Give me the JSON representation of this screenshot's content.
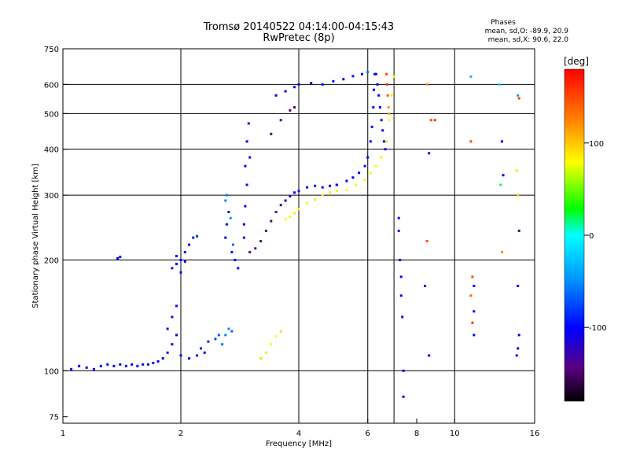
{
  "chart_data": {
    "type": "scatter",
    "title": "Tromsø 20140522 04:14:00-04:15:43",
    "subtitle": "RwPretec (8p)",
    "stats": {
      "heading": "Phases",
      "line1": "mean, sd,O: -89.9, 20.9",
      "line2": "mean, sd,X:  90.6, 22.0"
    },
    "xlabel": "Frequency [MHz]",
    "ylabel": "Stationary phase Virtual Height [km]",
    "x_scale": "log",
    "y_scale": "log",
    "xlim": [
      1,
      16
    ],
    "ylim": [
      72,
      750
    ],
    "x_ticks": [
      1,
      2,
      4,
      6,
      8,
      10,
      16
    ],
    "x_gridlines": [
      2,
      4,
      6,
      7,
      10
    ],
    "y_ticks": [
      75,
      100,
      200,
      300,
      400,
      500,
      600,
      750
    ],
    "y_gridlines": [
      100,
      200,
      300,
      400,
      500,
      600
    ],
    "grid": true,
    "colorbar": {
      "label": "[deg]",
      "range": [
        -180,
        180
      ],
      "ticks": [
        100,
        0,
        -100
      ],
      "tick_labels": [
        "100",
        "0",
        "-100"
      ]
    },
    "series": [
      {
        "points": [
          [
            1.05,
            101,
            -95
          ],
          [
            1.1,
            103,
            -100
          ],
          [
            1.15,
            102,
            -105
          ],
          [
            1.2,
            101,
            -98
          ],
          [
            1.25,
            103,
            -102
          ],
          [
            1.3,
            104,
            -96
          ],
          [
            1.35,
            103,
            -108
          ],
          [
            1.4,
            104,
            -100
          ],
          [
            1.45,
            103,
            -95
          ],
          [
            1.5,
            104,
            -103
          ],
          [
            1.55,
            103,
            -99
          ],
          [
            1.6,
            104,
            -101
          ],
          [
            1.65,
            104,
            -105
          ],
          [
            1.7,
            105,
            -97
          ],
          [
            1.75,
            106,
            -100
          ],
          [
            1.8,
            108,
            -102
          ],
          [
            1.85,
            112,
            -96
          ],
          [
            1.9,
            118,
            -100
          ],
          [
            1.95,
            125,
            -105
          ],
          [
            1.85,
            130,
            -98
          ],
          [
            1.9,
            140,
            -102
          ],
          [
            1.95,
            150,
            -95
          ],
          [
            2.0,
            110,
            -100
          ],
          [
            2.1,
            108,
            -102
          ],
          [
            2.2,
            110,
            -95
          ],
          [
            2.3,
            112,
            -105
          ]
        ]
      },
      {
        "points": [
          [
            1.9,
            190,
            -98
          ],
          [
            1.95,
            195,
            -102
          ],
          [
            2.0,
            200,
            -96
          ],
          [
            2.05,
            210,
            -105
          ],
          [
            2.1,
            220,
            -100
          ],
          [
            2.0,
            185,
            -95
          ],
          [
            1.95,
            205,
            -99
          ],
          [
            2.05,
            198,
            -103
          ],
          [
            2.15,
            230,
            -90
          ],
          [
            2.2,
            232,
            -85
          ]
        ]
      },
      {
        "points": [
          [
            1.38,
            202,
            -100
          ],
          [
            1.4,
            204,
            -102
          ]
        ]
      },
      {
        "points": [
          [
            2.25,
            115,
            -90
          ],
          [
            2.35,
            120,
            -85
          ],
          [
            2.45,
            122,
            -75
          ],
          [
            2.5,
            125,
            -70
          ],
          [
            2.55,
            118,
            -60
          ],
          [
            2.6,
            125,
            -55
          ],
          [
            2.65,
            130,
            -50
          ],
          [
            2.7,
            128,
            -65
          ]
        ]
      },
      {
        "points": [
          [
            2.6,
            230,
            -100
          ],
          [
            2.62,
            250,
            -95
          ],
          [
            2.65,
            270,
            -105
          ],
          [
            2.6,
            290,
            -50
          ],
          [
            2.62,
            300,
            -55
          ],
          [
            2.7,
            210,
            -100
          ],
          [
            2.75,
            200,
            -98
          ],
          [
            2.8,
            190,
            -102
          ],
          [
            2.72,
            220,
            -60
          ],
          [
            2.68,
            260,
            -45
          ]
        ]
      },
      {
        "points": [
          [
            2.9,
            250,
            -100
          ],
          [
            2.92,
            280,
            -98
          ],
          [
            2.95,
            320,
            -105
          ],
          [
            2.92,
            360,
            -102
          ],
          [
            2.95,
            420,
            -100
          ],
          [
            2.98,
            470,
            -95
          ],
          [
            2.9,
            230,
            -104
          ],
          [
            3.0,
            380,
            -108
          ]
        ]
      },
      {
        "points": [
          [
            3.0,
            210,
            -150
          ],
          [
            3.1,
            215,
            -145
          ],
          [
            3.2,
            225,
            -150
          ],
          [
            3.3,
            240,
            -140
          ],
          [
            3.4,
            255,
            -150
          ],
          [
            3.5,
            270,
            -145
          ],
          [
            3.6,
            282,
            -150
          ],
          [
            3.7,
            290,
            -110
          ],
          [
            3.8,
            298,
            -120
          ],
          [
            3.9,
            305,
            -100
          ],
          [
            4.0,
            308,
            -95
          ],
          [
            4.2,
            315,
            -100
          ],
          [
            4.4,
            318,
            -95
          ],
          [
            4.6,
            315,
            -100
          ],
          [
            4.8,
            318,
            -102
          ],
          [
            5.0,
            320,
            -100
          ]
        ]
      },
      {
        "points": [
          [
            3.2,
            108,
            60
          ],
          [
            3.3,
            112,
            70
          ],
          [
            3.4,
            118,
            75
          ],
          [
            3.5,
            124,
            80
          ],
          [
            3.6,
            128,
            90
          ]
        ]
      },
      {
        "points": [
          [
            3.4,
            440,
            -150
          ],
          [
            3.6,
            480,
            -145
          ],
          [
            3.8,
            510,
            -150
          ],
          [
            3.9,
            520,
            -140
          ]
        ]
      },
      {
        "points": [
          [
            3.5,
            560,
            -100
          ],
          [
            3.7,
            575,
            -105
          ],
          [
            3.9,
            590,
            -100
          ]
        ]
      },
      {
        "points": [
          [
            3.7,
            258,
            80
          ],
          [
            3.8,
            262,
            75
          ],
          [
            3.9,
            268,
            85
          ],
          [
            4.0,
            275,
            80
          ],
          [
            4.2,
            285,
            75
          ],
          [
            4.4,
            292,
            70
          ],
          [
            4.6,
            300,
            80
          ],
          [
            4.8,
            305,
            85
          ],
          [
            5.0,
            308,
            75
          ]
        ]
      },
      {
        "points": [
          [
            4.0,
            600,
            -100
          ],
          [
            4.3,
            605,
            -102
          ],
          [
            4.6,
            600,
            -98
          ],
          [
            4.9,
            612,
            -100
          ],
          [
            5.2,
            620,
            -105
          ],
          [
            5.5,
            632,
            -95
          ],
          [
            5.8,
            640,
            -100
          ],
          [
            6.0,
            648,
            -60
          ]
        ]
      },
      {
        "points": [
          [
            5.0,
            320,
            -100
          ],
          [
            5.3,
            328,
            -98
          ],
          [
            5.5,
            335,
            -102
          ],
          [
            5.7,
            345,
            -100
          ],
          [
            5.9,
            360,
            -95
          ],
          [
            6.0,
            380,
            -100
          ],
          [
            6.1,
            420,
            -105
          ],
          [
            6.15,
            460,
            -100
          ],
          [
            6.2,
            520,
            -98
          ],
          [
            6.22,
            580,
            -100
          ],
          [
            6.25,
            640,
            -95
          ]
        ]
      },
      {
        "points": [
          [
            5.3,
            310,
            80
          ],
          [
            5.6,
            320,
            75
          ],
          [
            5.9,
            330,
            85
          ],
          [
            6.1,
            345,
            80
          ],
          [
            6.3,
            360,
            75
          ],
          [
            6.5,
            380,
            85
          ],
          [
            6.7,
            420,
            90
          ],
          [
            6.8,
            480,
            80
          ],
          [
            6.9,
            560,
            85
          ],
          [
            7.0,
            630,
            75
          ]
        ]
      },
      {
        "points": [
          [
            6.3,
            640,
            -100
          ],
          [
            6.35,
            600,
            -98
          ],
          [
            6.4,
            560,
            -102
          ],
          [
            6.45,
            520,
            -100
          ],
          [
            6.5,
            480,
            -95
          ],
          [
            6.55,
            450,
            -100
          ],
          [
            6.6,
            420,
            -105
          ],
          [
            6.65,
            400,
            -98
          ]
        ]
      },
      {
        "points": [
          [
            6.7,
            640,
            150
          ],
          [
            6.72,
            600,
            160
          ],
          [
            6.75,
            560,
            140
          ],
          [
            6.78,
            520,
            120
          ],
          [
            6.8,
            500,
            110
          ]
        ]
      },
      {
        "points": [
          [
            7.2,
            260,
            -100
          ],
          [
            7.2,
            240,
            -95
          ],
          [
            7.25,
            200,
            -102
          ],
          [
            7.3,
            180,
            -100
          ],
          [
            7.3,
            160,
            -98
          ],
          [
            7.35,
            140,
            -100
          ],
          [
            7.4,
            100,
            -95
          ],
          [
            7.4,
            85,
            -102
          ]
        ]
      },
      {
        "points": [
          [
            8.5,
            600,
            120
          ],
          [
            8.7,
            480,
            150
          ],
          [
            8.9,
            480,
            160
          ],
          [
            8.6,
            390,
            -100
          ],
          [
            8.4,
            170,
            -95
          ],
          [
            8.6,
            110,
            -102
          ],
          [
            8.5,
            225,
            150
          ]
        ]
      },
      {
        "points": [
          [
            11.0,
            630,
            -30
          ],
          [
            11.0,
            420,
            150
          ],
          [
            11.1,
            180,
            150
          ],
          [
            11.2,
            170,
            -100
          ],
          [
            11.0,
            160,
            140
          ],
          [
            11.2,
            145,
            -100
          ],
          [
            11.1,
            135,
            160
          ],
          [
            11.2,
            125,
            -100
          ]
        ]
      },
      {
        "points": [
          [
            13.0,
            600,
            -20
          ],
          [
            13.2,
            420,
            -100
          ],
          [
            13.3,
            340,
            -105
          ],
          [
            13.1,
            320,
            20
          ],
          [
            13.2,
            210,
            120
          ]
        ]
      },
      {
        "points": [
          [
            14.5,
            560,
            -40
          ],
          [
            14.6,
            550,
            150
          ],
          [
            14.4,
            350,
            90
          ],
          [
            14.5,
            300,
            100
          ],
          [
            14.6,
            240,
            -150
          ],
          [
            14.5,
            170,
            -100
          ],
          [
            14.6,
            125,
            -100
          ],
          [
            14.5,
            115,
            -102
          ],
          [
            14.4,
            110,
            -95
          ]
        ]
      }
    ]
  }
}
